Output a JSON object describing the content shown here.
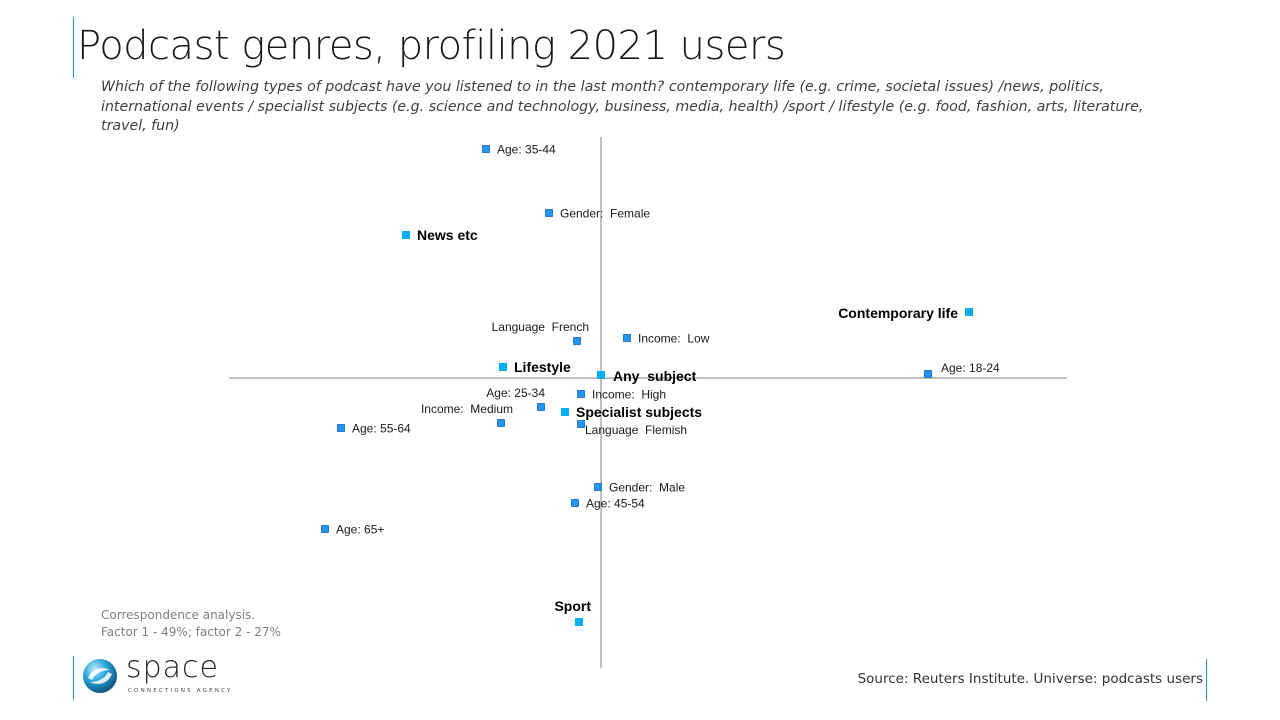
{
  "header": {
    "title": "Podcast genres, profiling 2021 users",
    "subtitle": "Which of the following types of podcast have you listened to in the last month? contemporary life (e.g. crime, societal issues) /news, politics, international events / specialist subjects (e.g. science and technology, business,  media, health) /sport / lifestyle (e.g. food, fashion, arts, literature, travel, fun)"
  },
  "colors": {
    "accent": "#17a2b8",
    "genre_marker": "#00b0f0",
    "demographic_marker": "#2196f3",
    "demographic_marker_border": "#1565c0",
    "axis": "#808080"
  },
  "chart_data": {
    "type": "scatter",
    "title": "Podcast genres, profiling 2021 users",
    "xlabel": "Factor 1",
    "ylabel": "Factor 2",
    "xlim": [
      -3.72,
      4.66
    ],
    "ylim": [
      -2.9,
      2.41
    ],
    "grid": false,
    "axes_through_origin": true,
    "legend": "none",
    "series": [
      {
        "name": "Genres",
        "points": [
          {
            "label": "News etc",
            "x": -1.95,
            "y": 1.43,
            "label_pos": "right"
          },
          {
            "label": "Contemporary life",
            "x": 3.68,
            "y": 0.66,
            "label_pos": "left"
          },
          {
            "label": "Lifestyle",
            "x": -0.98,
            "y": 0.11,
            "label_pos": "right"
          },
          {
            "label": "Any  subject",
            "x": 0.0,
            "y": 0.03,
            "label_pos": "right-below"
          },
          {
            "label": "Specialist subjects",
            "x": -0.36,
            "y": -0.34,
            "label_pos": "right"
          },
          {
            "label": "Sport",
            "x": -0.22,
            "y": -2.44,
            "label_pos": "above"
          }
        ]
      },
      {
        "name": "Demographics",
        "points": [
          {
            "label": "Age: 35-44",
            "x": -1.15,
            "y": 2.29,
            "label_pos": "right"
          },
          {
            "label": "Gender:  Female",
            "x": -0.52,
            "y": 1.65,
            "label_pos": "right"
          },
          {
            "label": "Language  French",
            "x": -0.24,
            "y": 0.37,
            "label_pos": "above-left"
          },
          {
            "label": "Income:  Low",
            "x": 0.26,
            "y": 0.4,
            "label_pos": "right"
          },
          {
            "label": "Age: 18-24",
            "x": 3.27,
            "y": 0.04,
            "label_pos": "right-above"
          },
          {
            "label": "Age: 25-34",
            "x": -0.6,
            "y": -0.29,
            "label_pos": "above"
          },
          {
            "label": "Income:  High",
            "x": -0.2,
            "y": -0.16,
            "label_pos": "right"
          },
          {
            "label": "Income:  Medium",
            "x": -1.0,
            "y": -0.45,
            "label_pos": "above-left"
          },
          {
            "label": "Language  Flemish",
            "x": -0.2,
            "y": -0.46,
            "label_pos": "right-tight"
          },
          {
            "label": "Age: 55-64",
            "x": -2.6,
            "y": -0.5,
            "label_pos": "right"
          },
          {
            "label": "Gender:  Male",
            "x": -0.03,
            "y": -1.09,
            "label_pos": "right"
          },
          {
            "label": "Age: 45-54",
            "x": -0.26,
            "y": -1.25,
            "label_pos": "right"
          },
          {
            "label": "Age: 65+",
            "x": -2.76,
            "y": -1.51,
            "label_pos": "right"
          }
        ]
      }
    ]
  },
  "footer": {
    "note_line1": "Correspondence analysis.",
    "note_line2": "Factor 1 - 49%; factor 2 - 27%",
    "source": "Source: Reuters Institute. Universe: podcasts users",
    "logo_word": "space",
    "logo_tagline": "CONNECTIONS AGENCY"
  }
}
